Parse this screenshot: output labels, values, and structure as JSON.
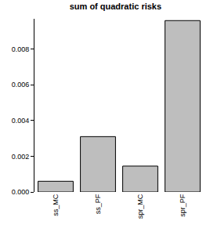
{
  "chart_data": {
    "type": "bar",
    "title": "sum of quadratic risks",
    "categories": [
      "ss_MC",
      "ss_PF",
      "spr_MC",
      "spr_PF"
    ],
    "values": [
      0.0006,
      0.0031,
      0.00145,
      0.0096
    ],
    "color": "#bebebe",
    "ylim": [
      0,
      0.0097
    ],
    "yticks": [
      {
        "value": 0,
        "label": "0.000"
      },
      {
        "value": 0.002,
        "label": "0.002"
      },
      {
        "value": 0.004,
        "label": "0.004"
      },
      {
        "value": 0.006,
        "label": "0.006"
      },
      {
        "value": 0.008,
        "label": "0.008"
      }
    ],
    "grid": false
  }
}
